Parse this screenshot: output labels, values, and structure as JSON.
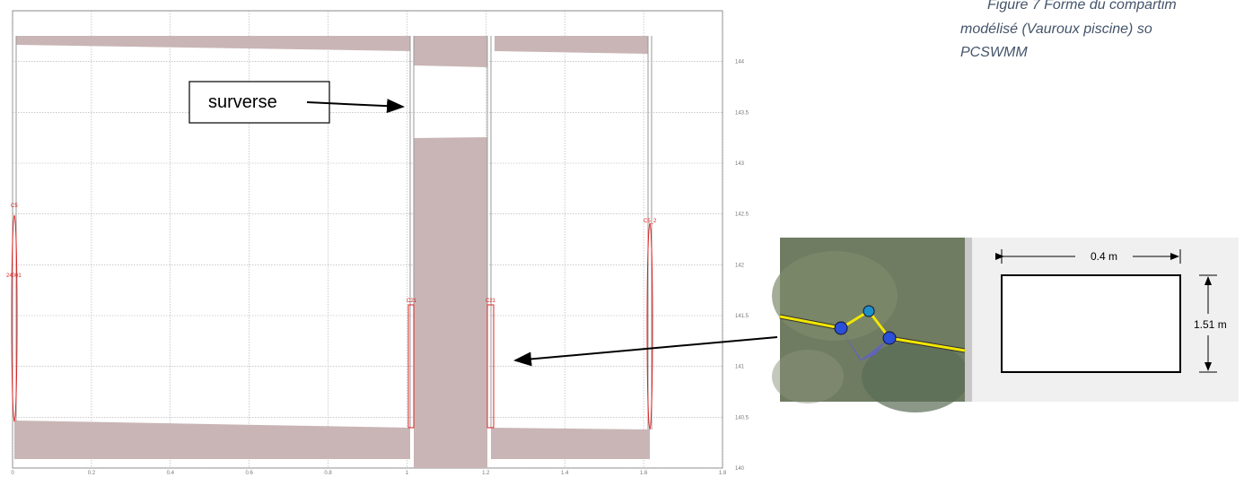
{
  "figure": {
    "caption_lines": [
      "Figure 7 Forme du compartim",
      "modélisé (Vauroux piscine) so",
      "PCSWMM"
    ],
    "annotation": "surverse",
    "profile": {
      "xlim": [
        0,
        1.8
      ],
      "ylim": [
        140,
        144.5
      ],
      "xticks": [
        0,
        0.2,
        0.4,
        0.6,
        0.8,
        1,
        1.2,
        1.4,
        1.6,
        1.8
      ],
      "yticks": [
        140,
        140.5,
        141,
        141.5,
        142,
        142.5,
        143,
        143.5,
        144
      ],
      "node_labels": [
        "C5",
        "24001",
        "C21",
        "C21",
        "C5_2"
      ]
    },
    "section": {
      "width_label": "0.4 m",
      "height_label": "1.51 m"
    }
  }
}
